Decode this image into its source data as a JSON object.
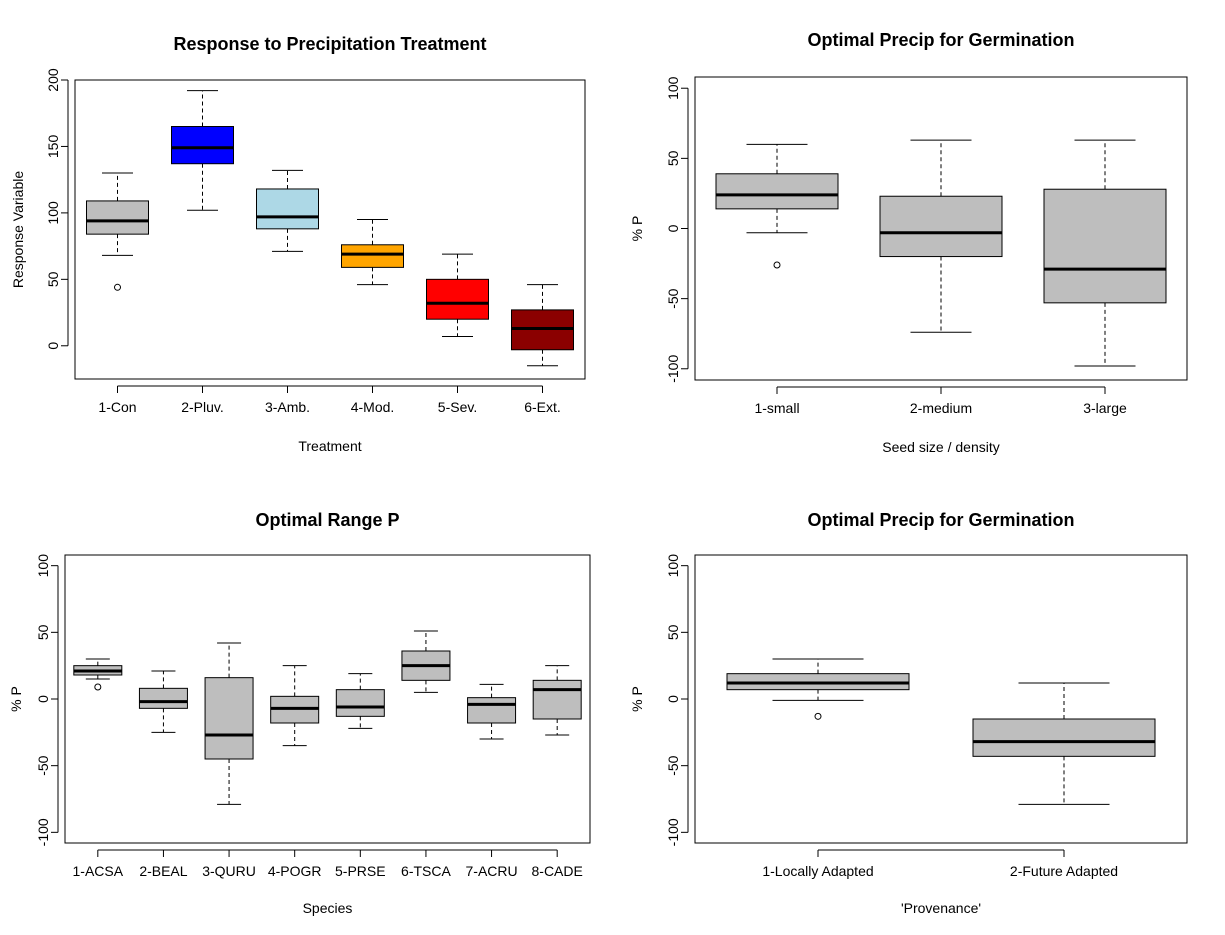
{
  "chart_data": [
    {
      "type": "box",
      "title": "Response to Precipitation Treatment",
      "xlabel": "Treatment",
      "ylabel": "Response Variable",
      "ylim": [
        -25,
        200
      ],
      "yticks": [
        0,
        50,
        100,
        150,
        200
      ],
      "categories": [
        "1-Con",
        "2-Pluv.",
        "3-Amb.",
        "4-Mod.",
        "5-Sev.",
        "6-Ext."
      ],
      "fill_colors": [
        "#bebebe",
        "#0000ff",
        "#add8e6",
        "#ffa500",
        "#ff0000",
        "#8b0000"
      ],
      "boxes": [
        {
          "whisker_low": 68,
          "q1": 84,
          "median": 94,
          "q3": 109,
          "whisker_high": 130,
          "outliers": [
            44
          ]
        },
        {
          "whisker_low": 102,
          "q1": 137,
          "median": 149,
          "q3": 165,
          "whisker_high": 192,
          "outliers": []
        },
        {
          "whisker_low": 71,
          "q1": 88,
          "median": 97,
          "q3": 118,
          "whisker_high": 132,
          "outliers": []
        },
        {
          "whisker_low": 46,
          "q1": 59,
          "median": 69,
          "q3": 76,
          "whisker_high": 95,
          "outliers": []
        },
        {
          "whisker_low": 7,
          "q1": 20,
          "median": 32,
          "q3": 50,
          "whisker_high": 69,
          "outliers": []
        },
        {
          "whisker_low": -15,
          "q1": -3,
          "median": 13,
          "q3": 27,
          "whisker_high": 46,
          "outliers": []
        }
      ]
    },
    {
      "type": "box",
      "title": "Optimal Precip for Germination",
      "xlabel": "Seed size / density",
      "ylabel": "% P",
      "ylim": [
        -108,
        108
      ],
      "yticks": [
        -100,
        -50,
        0,
        50,
        100
      ],
      "categories": [
        "1-small",
        "2-medium",
        "3-large"
      ],
      "fill_colors": [
        "#bebebe",
        "#bebebe",
        "#bebebe"
      ],
      "boxes": [
        {
          "whisker_low": -3,
          "q1": 14,
          "median": 24,
          "q3": 39,
          "whisker_high": 60,
          "outliers": [
            -26
          ]
        },
        {
          "whisker_low": -74,
          "q1": -20,
          "median": -3,
          "q3": 23,
          "whisker_high": 63,
          "outliers": []
        },
        {
          "whisker_low": -98,
          "q1": -53,
          "median": -29,
          "q3": 28,
          "whisker_high": 63,
          "outliers": []
        }
      ]
    },
    {
      "type": "box",
      "title": "Optimal Range P",
      "xlabel": "Species",
      "ylabel": "% P",
      "ylim": [
        -108,
        108
      ],
      "yticks": [
        -100,
        -50,
        0,
        50,
        100
      ],
      "categories": [
        "1-ACSA",
        "2-BEAL",
        "3-QURU",
        "4-POGR",
        "5-PRSE",
        "6-TSCA",
        "7-ACRU",
        "8-CADE"
      ],
      "fill_colors": [
        "#bebebe",
        "#bebebe",
        "#bebebe",
        "#bebebe",
        "#bebebe",
        "#bebebe",
        "#bebebe",
        "#bebebe"
      ],
      "boxes": [
        {
          "whisker_low": 15,
          "q1": 18,
          "median": 21,
          "q3": 25,
          "whisker_high": 30,
          "outliers": [
            9
          ]
        },
        {
          "whisker_low": -25,
          "q1": -7,
          "median": -2,
          "q3": 8,
          "whisker_high": 21,
          "outliers": []
        },
        {
          "whisker_low": -79,
          "q1": -45,
          "median": -27,
          "q3": 16,
          "whisker_high": 42,
          "outliers": []
        },
        {
          "whisker_low": -35,
          "q1": -18,
          "median": -7,
          "q3": 2,
          "whisker_high": 25,
          "outliers": []
        },
        {
          "whisker_low": -22,
          "q1": -13,
          "median": -6,
          "q3": 7,
          "whisker_high": 19,
          "outliers": []
        },
        {
          "whisker_low": 5,
          "q1": 14,
          "median": 25,
          "q3": 36,
          "whisker_high": 51,
          "outliers": []
        },
        {
          "whisker_low": -30,
          "q1": -18,
          "median": -4,
          "q3": 1,
          "whisker_high": 11,
          "outliers": []
        },
        {
          "whisker_low": -27,
          "q1": -15,
          "median": 7,
          "q3": 14,
          "whisker_high": 25,
          "outliers": []
        }
      ]
    },
    {
      "type": "box",
      "title": "Optimal Precip for Germination",
      "xlabel": "'Provenance'",
      "ylabel": "% P",
      "ylim": [
        -108,
        108
      ],
      "yticks": [
        -100,
        -50,
        0,
        50,
        100
      ],
      "categories": [
        "1-Locally Adapted",
        "2-Future Adapted"
      ],
      "fill_colors": [
        "#bebebe",
        "#bebebe"
      ],
      "boxes": [
        {
          "whisker_low": -1,
          "q1": 7,
          "median": 12,
          "q3": 19,
          "whisker_high": 30,
          "outliers": [
            -13
          ]
        },
        {
          "whisker_low": -79,
          "q1": -43,
          "median": -32,
          "q3": -15,
          "whisker_high": 12,
          "outliers": []
        }
      ]
    }
  ]
}
